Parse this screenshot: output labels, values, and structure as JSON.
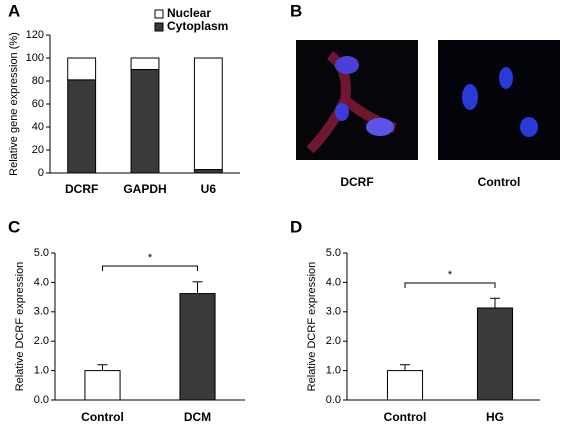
{
  "chart_data": [
    {
      "type": "stacked-bar",
      "label": "A",
      "ylabel": "Relative gene expression (%)",
      "categories": [
        "DCRF",
        "GAPDH",
        "U6"
      ],
      "series": [
        {
          "name": "Nuclear",
          "color": "#ffffff",
          "values": [
            19,
            10,
            97
          ]
        },
        {
          "name": "Cytoplasm",
          "color": "#3a3a3a",
          "values": [
            81,
            90,
            3
          ]
        }
      ],
      "ylim": [
        0,
        120
      ],
      "yticks": [
        0,
        20,
        40,
        60,
        80,
        100,
        120
      ]
    },
    {
      "type": "bar",
      "label": "C",
      "ylabel": "Relative DCRF expression",
      "categories": [
        "Control",
        "DCM"
      ],
      "values": [
        1.0,
        3.62
      ],
      "errors": [
        0.2,
        0.4
      ],
      "colors": [
        "#ffffff",
        "#3a3a3a"
      ],
      "significance": "*",
      "ylim": [
        0,
        5
      ],
      "yticks": [
        {
          "value": 0,
          "label": "0.0"
        },
        {
          "value": 1,
          "label": "1.0"
        },
        {
          "value": 2,
          "label": "2.0"
        },
        {
          "value": 3,
          "label": "3.0"
        },
        {
          "value": 4,
          "label": "4.0"
        },
        {
          "value": 5,
          "label": "5.0"
        }
      ]
    },
    {
      "type": "bar",
      "label": "D",
      "ylabel": "Relative DCRF expression",
      "categories": [
        "Control",
        "HG"
      ],
      "values": [
        1.0,
        3.13
      ],
      "errors": [
        0.2,
        0.33
      ],
      "colors": [
        "#ffffff",
        "#3a3a3a"
      ],
      "significance": "*",
      "ylim": [
        0,
        5
      ],
      "yticks": [
        {
          "value": 0,
          "label": "0.0"
        },
        {
          "value": 1,
          "label": "1.0"
        },
        {
          "value": 2,
          "label": "2.0"
        },
        {
          "value": 3,
          "label": "3.0"
        },
        {
          "value": 4,
          "label": "4.0"
        },
        {
          "value": 5,
          "label": "5.0"
        }
      ]
    }
  ],
  "images": {
    "label": "B",
    "captions": [
      "DCRF",
      "Control"
    ]
  }
}
